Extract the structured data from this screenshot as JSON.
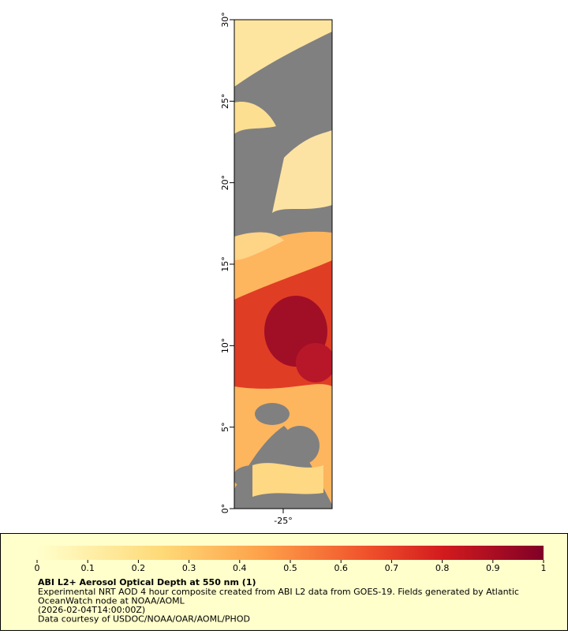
{
  "map": {
    "lat_range": [
      0,
      30
    ],
    "lon_range": [
      -28,
      -22
    ],
    "lat_ticks": [
      {
        "value": 0,
        "label": "0°"
      },
      {
        "value": 5,
        "label": "5°"
      },
      {
        "value": 10,
        "label": "10°"
      },
      {
        "value": 15,
        "label": "15°"
      },
      {
        "value": 20,
        "label": "20°"
      },
      {
        "value": 25,
        "label": "25°"
      },
      {
        "value": 30,
        "label": "30°"
      }
    ],
    "lon_ticks": [
      {
        "value": -25,
        "label": "-25°"
      }
    ]
  },
  "legend": {
    "colorbar_range": [
      0,
      1
    ],
    "colorbar_ticks": [
      0,
      0.1,
      0.2,
      0.3,
      0.4,
      0.5,
      0.6,
      0.7,
      0.8,
      0.9,
      1
    ],
    "title": "ABI L2+ Aerosol Optical Depth at 550 nm (1)",
    "lines": [
      "Experimental NRT AOD 4 hour composite created from ABI L2 data from GOES-19. Fields generated by Atlantic",
      "OceanWatch node at NOAA/AOML",
      "(2026-02-04T14:00:00Z)",
      "Data courtesy of USDOC/NOAA/OAR/AOML/PHOD"
    ]
  }
}
